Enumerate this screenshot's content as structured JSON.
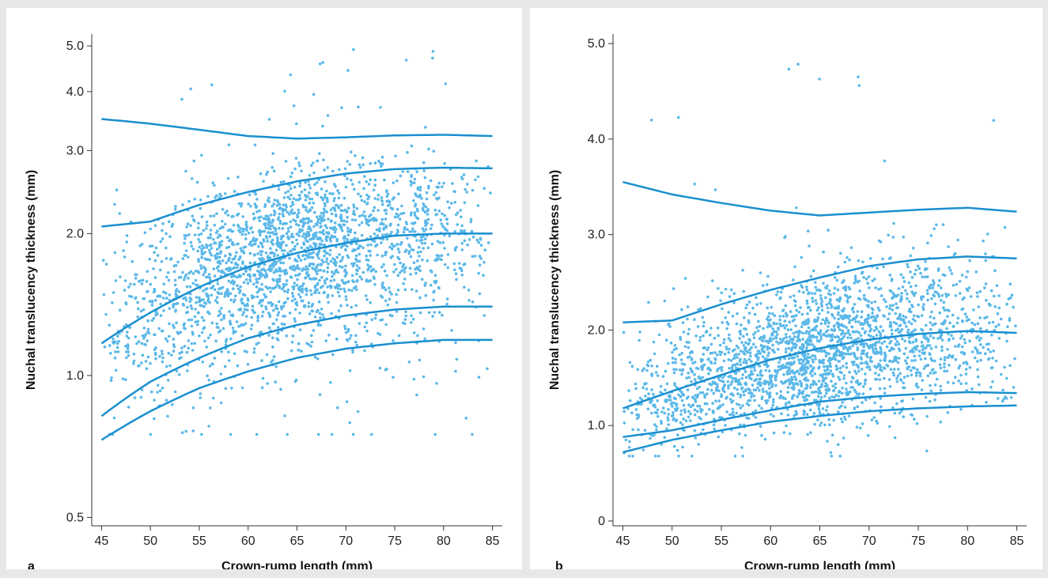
{
  "colors": {
    "points": "#5bb8e8",
    "curves": "#1a8fd0"
  },
  "chart_data": [
    {
      "panel_label": "a",
      "type": "scatter",
      "xlabel": "Crown-rump length (mm)",
      "ylabel": "Nuchal translucency thickness (mm)",
      "x_ticks": [
        "45",
        "50",
        "55",
        "60",
        "65",
        "70",
        "75",
        "80",
        "85"
      ],
      "y_ticks": [
        "0.5",
        "1.0",
        "2.0",
        "3.0",
        "4.0",
        "5.0"
      ],
      "xlim": [
        44,
        86
      ],
      "ylim": [
        0.48,
        5.3
      ],
      "y_scale": "log",
      "grid": false,
      "series": [
        {
          "x": [
            45,
            50,
            55,
            60,
            65,
            70,
            75,
            80,
            85
          ],
          "y": [
            3.5,
            3.42,
            3.32,
            3.22,
            3.18,
            3.2,
            3.23,
            3.24,
            3.22
          ]
        },
        {
          "x": [
            45,
            50,
            55,
            60,
            65,
            70,
            75,
            80,
            85
          ],
          "y": [
            2.07,
            2.12,
            2.3,
            2.45,
            2.58,
            2.68,
            2.74,
            2.76,
            2.75
          ]
        },
        {
          "x": [
            45,
            50,
            55,
            60,
            65,
            70,
            75,
            80,
            85
          ],
          "y": [
            1.17,
            1.36,
            1.54,
            1.7,
            1.82,
            1.91,
            1.98,
            2.0,
            2.0
          ]
        },
        {
          "x": [
            45,
            50,
            55,
            60,
            65,
            70,
            75,
            80,
            85
          ],
          "y": [
            0.82,
            0.97,
            1.09,
            1.2,
            1.28,
            1.34,
            1.38,
            1.4,
            1.4
          ]
        },
        {
          "x": [
            45,
            50,
            55,
            60,
            65,
            70,
            75,
            80,
            85
          ],
          "y": [
            0.73,
            0.84,
            0.94,
            1.02,
            1.09,
            1.14,
            1.17,
            1.19,
            1.19
          ]
        }
      ],
      "scatter_points": {
        "count": 2400,
        "x_range": [
          45,
          85
        ],
        "y_range": [
          0.75,
          4.95
        ]
      }
    },
    {
      "panel_label": "b",
      "type": "scatter",
      "xlabel": "Crown-rump length (mm)",
      "ylabel": "Nuchal translucency thickness (mm)",
      "x_ticks": [
        "45",
        "50",
        "55",
        "60",
        "65",
        "70",
        "75",
        "80",
        "85"
      ],
      "y_ticks": [
        "0",
        "1.0",
        "2.0",
        "3.0",
        "4.0",
        "5.0"
      ],
      "xlim": [
        44,
        86
      ],
      "ylim": [
        -0.05,
        5.1
      ],
      "y_scale": "custom",
      "grid": false,
      "series": [
        {
          "x": [
            45,
            50,
            55,
            60,
            65,
            70,
            75,
            80,
            85
          ],
          "y": [
            3.55,
            3.42,
            3.33,
            3.25,
            3.2,
            3.23,
            3.26,
            3.28,
            3.24
          ]
        },
        {
          "x": [
            45,
            50,
            55,
            60,
            65,
            70,
            75,
            80,
            85
          ],
          "y": [
            2.08,
            2.1,
            2.27,
            2.42,
            2.55,
            2.67,
            2.74,
            2.77,
            2.75
          ]
        },
        {
          "x": [
            45,
            50,
            55,
            60,
            65,
            70,
            75,
            80,
            85
          ],
          "y": [
            1.18,
            1.36,
            1.53,
            1.69,
            1.81,
            1.9,
            1.96,
            1.99,
            1.97
          ]
        },
        {
          "x": [
            45,
            50,
            55,
            60,
            65,
            70,
            75,
            80,
            85
          ],
          "y": [
            0.88,
            0.95,
            1.06,
            1.16,
            1.25,
            1.3,
            1.33,
            1.35,
            1.34
          ]
        },
        {
          "x": [
            45,
            50,
            55,
            60,
            65,
            70,
            75,
            80,
            85
          ],
          "y": [
            0.72,
            0.85,
            0.95,
            1.04,
            1.1,
            1.15,
            1.18,
            1.2,
            1.21
          ]
        }
      ],
      "scatter_points": {
        "count": 2400,
        "x_range": [
          45,
          85
        ],
        "y_range": [
          0.68,
          4.8
        ]
      }
    }
  ]
}
